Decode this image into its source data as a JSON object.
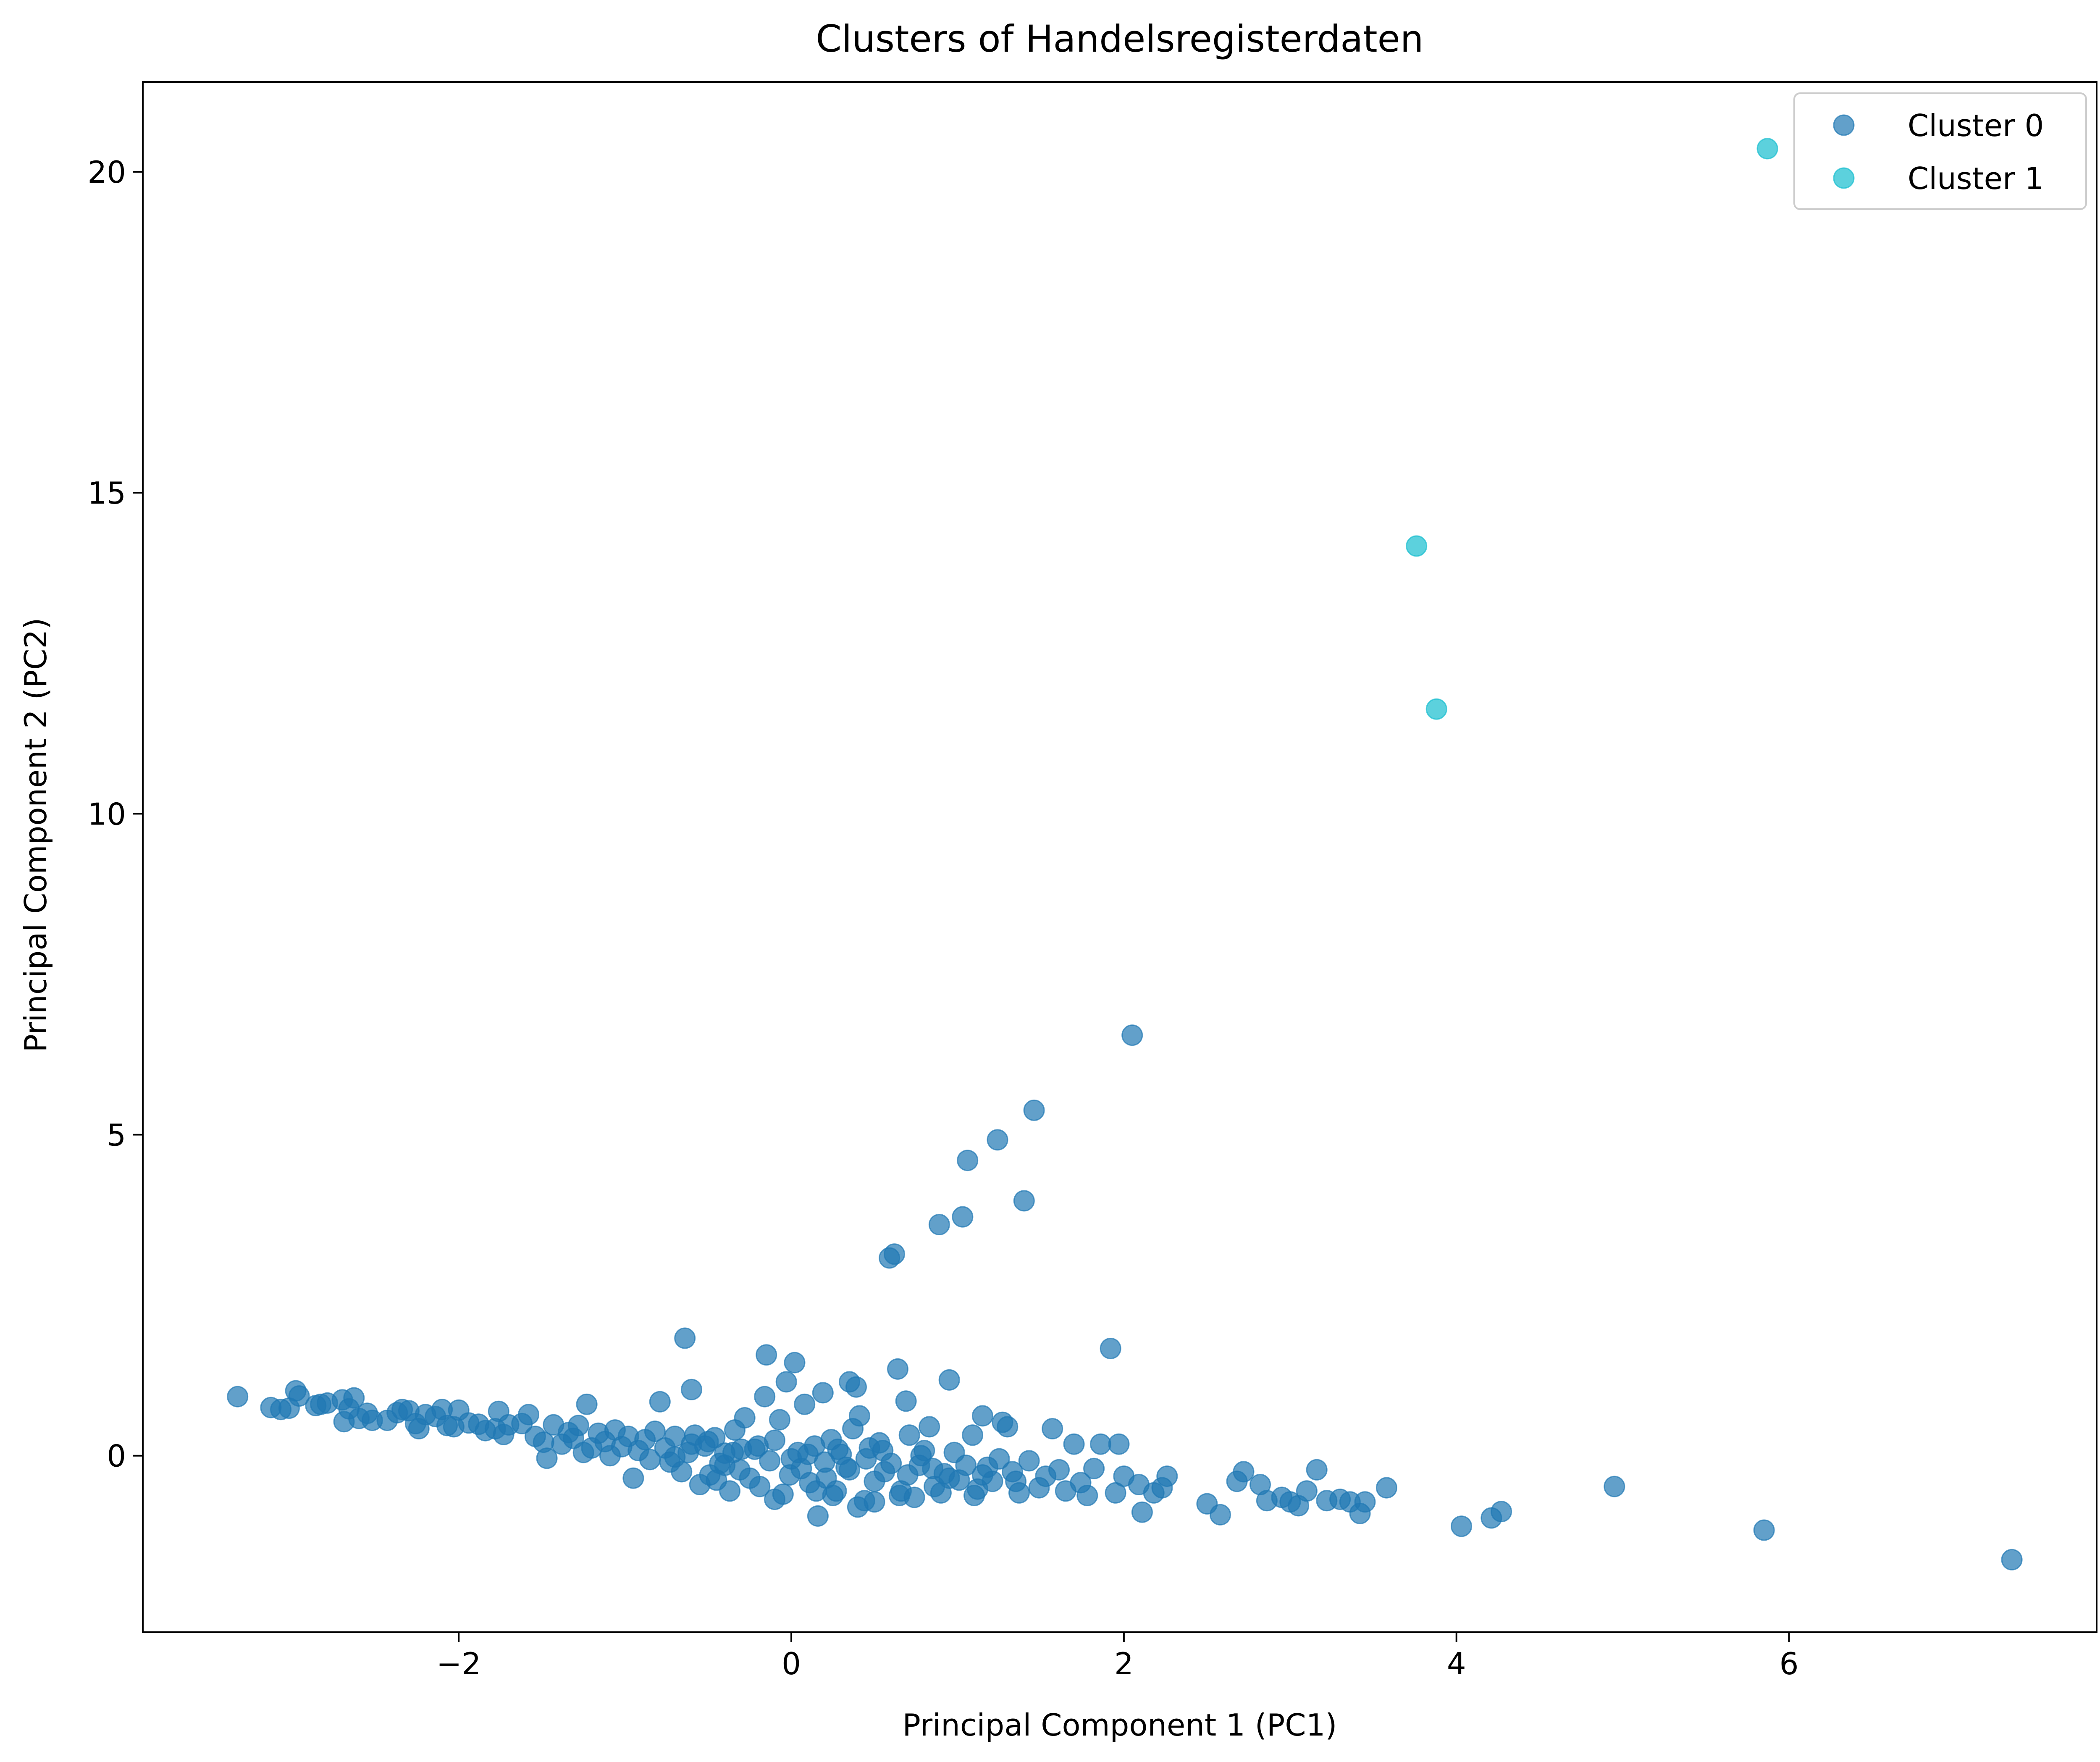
{
  "chart_data": {
    "type": "scatter",
    "title": "Clusters of Handelsregisterdaten",
    "xlabel": "Principal Component 1 (PC1)",
    "ylabel": "Principal Component 2 (PC2)",
    "xlim": [
      -3.9,
      7.85
    ],
    "ylim": [
      -2.75,
      21.4
    ],
    "xticks": [
      -2,
      0,
      2,
      4,
      6
    ],
    "yticks": [
      0,
      5,
      10,
      15,
      20
    ],
    "grid": false,
    "legend_position": "top-right",
    "series": [
      {
        "name": "Cluster 0",
        "color": "#1f77b4",
        "points": [
          [
            -3.33,
            0.92
          ],
          [
            -3.13,
            0.75
          ],
          [
            -3.07,
            0.72
          ],
          [
            -3.02,
            0.74
          ],
          [
            -2.98,
            1.01
          ],
          [
            -2.96,
            0.93
          ],
          [
            -2.86,
            0.78
          ],
          [
            -2.83,
            0.8
          ],
          [
            -2.79,
            0.82
          ],
          [
            -2.7,
            0.87
          ],
          [
            -2.69,
            0.53
          ],
          [
            -2.66,
            0.73
          ],
          [
            -2.63,
            0.9
          ],
          [
            -2.6,
            0.58
          ],
          [
            -2.55,
            0.66
          ],
          [
            -2.52,
            0.55
          ],
          [
            -2.43,
            0.55
          ],
          [
            -2.37,
            0.67
          ],
          [
            -2.34,
            0.72
          ],
          [
            -2.3,
            0.7
          ],
          [
            -2.26,
            0.5
          ],
          [
            -2.24,
            0.42
          ],
          [
            -2.2,
            0.64
          ],
          [
            -2.14,
            0.61
          ],
          [
            -2.1,
            0.72
          ],
          [
            -2.07,
            0.47
          ],
          [
            -2.03,
            0.45
          ],
          [
            -2.0,
            0.71
          ],
          [
            -1.94,
            0.51
          ],
          [
            -1.88,
            0.49
          ],
          [
            -1.84,
            0.39
          ],
          [
            -1.78,
            0.42
          ],
          [
            -1.76,
            0.69
          ],
          [
            -1.73,
            0.33
          ],
          [
            -1.7,
            0.48
          ],
          [
            -1.62,
            0.5
          ],
          [
            -1.58,
            0.64
          ],
          [
            -1.54,
            0.3
          ],
          [
            -1.49,
            0.21
          ],
          [
            -1.47,
            -0.04
          ],
          [
            -1.43,
            0.48
          ],
          [
            -1.38,
            0.18
          ],
          [
            -1.34,
            0.36
          ],
          [
            -1.31,
            0.27
          ],
          [
            -1.28,
            0.47
          ],
          [
            -1.25,
            0.05
          ],
          [
            -1.23,
            0.8
          ],
          [
            -1.2,
            0.12
          ],
          [
            -1.16,
            0.35
          ],
          [
            -1.12,
            0.22
          ],
          [
            -1.09,
            0.0
          ],
          [
            -1.06,
            0.4
          ],
          [
            -1.02,
            0.14
          ],
          [
            -0.98,
            0.3
          ],
          [
            -0.95,
            -0.35
          ],
          [
            -0.92,
            0.08
          ],
          [
            -0.88,
            0.25
          ],
          [
            -0.85,
            -0.06
          ],
          [
            -0.82,
            0.38
          ],
          [
            -0.79,
            0.84
          ],
          [
            -0.76,
            0.12
          ],
          [
            -0.73,
            -0.1
          ],
          [
            -0.7,
            0.3
          ],
          [
            -0.66,
            -0.25
          ],
          [
            -0.64,
            1.83
          ],
          [
            -0.62,
            0.05
          ],
          [
            -0.6,
            1.03
          ],
          [
            -0.58,
            0.32
          ],
          [
            -0.55,
            -0.45
          ],
          [
            -0.52,
            0.15
          ],
          [
            -0.49,
            -0.3
          ],
          [
            -0.46,
            0.28
          ],
          [
            -0.43,
            -0.12
          ],
          [
            -0.4,
            0.04
          ],
          [
            -0.37,
            -0.55
          ],
          [
            -0.34,
            0.4
          ],
          [
            -0.31,
            -0.22
          ],
          [
            -0.28,
            0.59
          ],
          [
            -0.25,
            -0.35
          ],
          [
            -0.22,
            0.1
          ],
          [
            -0.19,
            -0.48
          ],
          [
            -0.16,
            0.92
          ],
          [
            -0.15,
            1.57
          ],
          [
            -0.13,
            -0.08
          ],
          [
            -0.1,
            0.24
          ],
          [
            -0.07,
            0.56
          ],
          [
            -0.05,
            -0.6
          ],
          [
            -0.03,
            1.15
          ],
          [
            -0.01,
            -0.3
          ],
          [
            0.02,
            1.45
          ],
          [
            0.04,
            0.05
          ],
          [
            0.06,
            -0.2
          ],
          [
            0.08,
            0.8
          ],
          [
            0.11,
            -0.42
          ],
          [
            0.14,
            0.15
          ],
          [
            0.16,
            -0.94
          ],
          [
            0.19,
            0.98
          ],
          [
            0.21,
            -0.35
          ],
          [
            0.24,
            0.25
          ],
          [
            0.27,
            -0.55
          ],
          [
            0.3,
            0.02
          ],
          [
            0.33,
            -0.18
          ],
          [
            0.35,
            1.15
          ],
          [
            0.37,
            0.42
          ],
          [
            0.39,
            1.07
          ],
          [
            0.41,
            0.62
          ],
          [
            0.44,
            -0.7
          ],
          [
            0.47,
            0.12
          ],
          [
            0.5,
            -0.4
          ],
          [
            0.53,
            0.2
          ],
          [
            0.56,
            -0.25
          ],
          [
            0.59,
            3.08
          ],
          [
            0.62,
            3.14
          ],
          [
            0.64,
            1.35
          ],
          [
            0.66,
            -0.55
          ],
          [
            0.69,
            0.85
          ],
          [
            0.71,
            0.32
          ],
          [
            0.74,
            -0.65
          ],
          [
            0.77,
            -0.15
          ],
          [
            0.8,
            0.08
          ],
          [
            0.83,
            0.45
          ],
          [
            0.86,
            -0.48
          ],
          [
            0.89,
            3.6
          ],
          [
            0.92,
            -0.28
          ],
          [
            0.95,
            1.18
          ],
          [
            0.98,
            0.05
          ],
          [
            1.01,
            -0.38
          ],
          [
            1.03,
            3.72
          ],
          [
            1.06,
            4.6
          ],
          [
            1.09,
            0.32
          ],
          [
            1.12,
            -0.52
          ],
          [
            1.15,
            0.62
          ],
          [
            1.18,
            -0.18
          ],
          [
            1.21,
            -0.4
          ],
          [
            1.24,
            4.92
          ],
          [
            1.27,
            0.52
          ],
          [
            1.3,
            0.45
          ],
          [
            1.33,
            -0.25
          ],
          [
            1.37,
            -0.58
          ],
          [
            1.4,
            3.97
          ],
          [
            1.43,
            -0.08
          ],
          [
            1.46,
            5.38
          ],
          [
            1.49,
            -0.5
          ],
          [
            1.53,
            -0.32
          ],
          [
            1.57,
            0.42
          ],
          [
            1.61,
            -0.22
          ],
          [
            1.65,
            -0.55
          ],
          [
            1.7,
            0.18
          ],
          [
            1.74,
            -0.42
          ],
          [
            1.78,
            -0.62
          ],
          [
            1.82,
            -0.2
          ],
          [
            1.86,
            0.18
          ],
          [
            1.92,
            1.67
          ],
          [
            1.95,
            -0.58
          ],
          [
            1.97,
            0.18
          ],
          [
            2.0,
            -0.32
          ],
          [
            2.05,
            6.55
          ],
          [
            2.09,
            -0.45
          ],
          [
            2.11,
            -0.88
          ],
          [
            2.18,
            -0.58
          ],
          [
            2.23,
            -0.5
          ],
          [
            2.26,
            -0.32
          ],
          [
            2.5,
            -0.75
          ],
          [
            2.58,
            -0.92
          ],
          [
            2.68,
            -0.4
          ],
          [
            2.72,
            -0.25
          ],
          [
            2.82,
            -0.45
          ],
          [
            2.86,
            -0.7
          ],
          [
            2.95,
            -0.65
          ],
          [
            3.0,
            -0.72
          ],
          [
            3.05,
            -0.78
          ],
          [
            3.1,
            -0.55
          ],
          [
            3.16,
            -0.22
          ],
          [
            3.22,
            -0.7
          ],
          [
            3.3,
            -0.68
          ],
          [
            3.36,
            -0.72
          ],
          [
            3.42,
            -0.9
          ],
          [
            3.45,
            -0.72
          ],
          [
            3.58,
            -0.5
          ],
          [
            4.03,
            -1.1
          ],
          [
            4.21,
            -0.97
          ],
          [
            4.27,
            -0.87
          ],
          [
            4.95,
            -0.48
          ],
          [
            5.85,
            -1.16
          ],
          [
            7.34,
            -1.62
          ],
          [
            -0.35,
            0.05
          ],
          [
            -0.2,
            0.15
          ],
          [
            0.0,
            -0.05
          ],
          [
            0.1,
            0.02
          ],
          [
            0.2,
            -0.1
          ],
          [
            0.28,
            0.1
          ],
          [
            0.35,
            -0.22
          ],
          [
            0.45,
            -0.05
          ],
          [
            0.55,
            0.08
          ],
          [
            0.6,
            -0.12
          ],
          [
            0.7,
            -0.3
          ],
          [
            0.78,
            0.0
          ],
          [
            0.85,
            -0.2
          ],
          [
            0.95,
            -0.35
          ],
          [
            1.05,
            -0.15
          ],
          [
            1.15,
            -0.3
          ],
          [
            1.25,
            -0.05
          ],
          [
            1.35,
            -0.4
          ],
          [
            -0.5,
            0.22
          ],
          [
            -0.4,
            -0.15
          ],
          [
            -0.3,
            0.1
          ],
          [
            -0.6,
            0.18
          ],
          [
            -0.7,
            -0.02
          ],
          [
            -0.45,
            -0.38
          ],
          [
            0.25,
            -0.62
          ],
          [
            0.4,
            -0.8
          ],
          [
            0.5,
            -0.72
          ],
          [
            -0.1,
            -0.68
          ],
          [
            0.15,
            -0.55
          ],
          [
            0.65,
            -0.62
          ],
          [
            0.9,
            -0.58
          ],
          [
            1.1,
            -0.62
          ]
        ]
      },
      {
        "name": "Cluster 1",
        "color": "#17becf",
        "points": [
          [
            5.87,
            20.36
          ],
          [
            3.76,
            14.17
          ],
          [
            3.88,
            11.63
          ]
        ]
      }
    ]
  }
}
